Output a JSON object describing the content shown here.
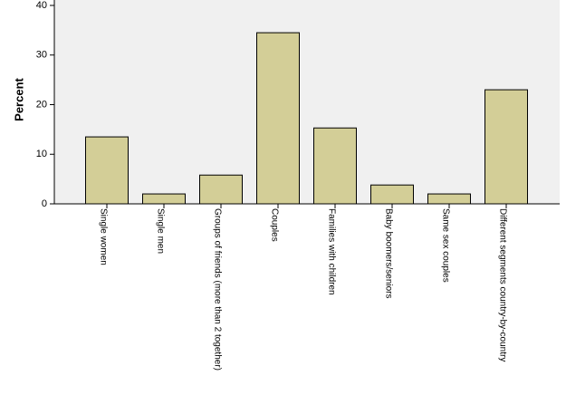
{
  "chart_data": {
    "type": "bar",
    "y_label": "Percent",
    "categories": [
      "Single women",
      "Single men",
      "Groups of friends (more than 2 together)",
      "Couples",
      "Families with children",
      "Baby boomers/seniors",
      "Same sex couples",
      "Different segments country-by-country"
    ],
    "values": [
      13.5,
      2.0,
      5.8,
      34.5,
      15.3,
      3.8,
      2.0,
      23.0
    ],
    "color": "#d3ce97",
    "ylim": [
      0,
      40
    ],
    "yticks": [
      0,
      10,
      20,
      30,
      40
    ]
  }
}
